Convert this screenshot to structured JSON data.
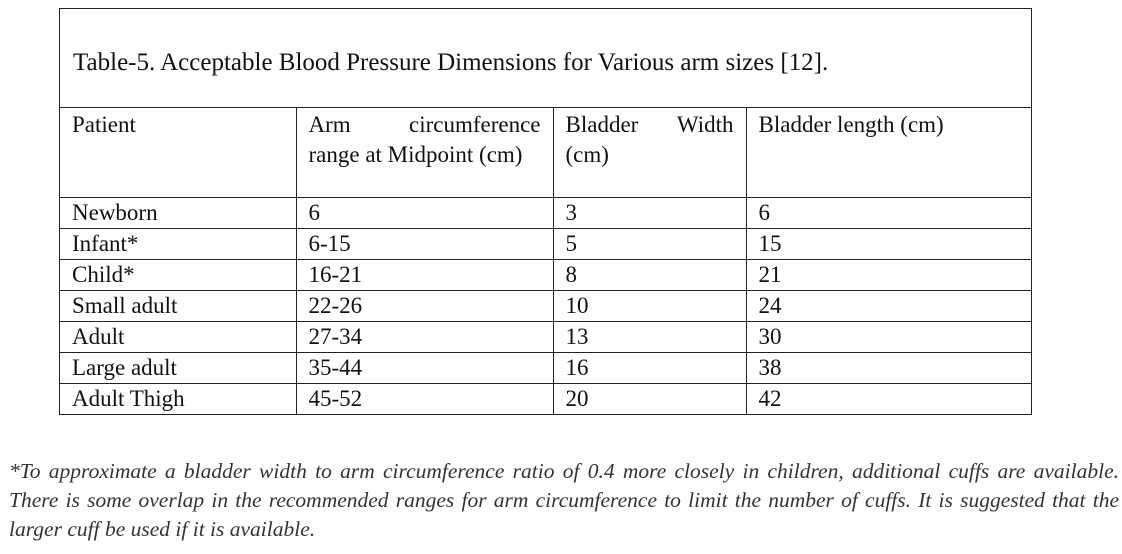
{
  "caption": "Table-5. Acceptable Blood Pressure Dimensions for Various arm sizes [12].",
  "table": {
    "headers": [
      "Patient",
      "Arm circumference range at Midpoint (cm)",
      "Bladder Width (cm)",
      "Bladder length (cm)"
    ],
    "rows": [
      [
        "Newborn",
        "6",
        "3",
        "6"
      ],
      [
        "Infant*",
        "6-15",
        "5",
        "15"
      ],
      [
        "Child*",
        "16-21",
        "8",
        "21"
      ],
      [
        "Small adult",
        "22-26",
        "10",
        "24"
      ],
      [
        "Adult",
        "27-34",
        "13",
        "30"
      ],
      [
        "Large adult",
        "35-44",
        "16",
        "38"
      ],
      [
        "Adult Thigh",
        "45-52",
        "20",
        "42"
      ]
    ]
  },
  "footnote": "*To approximate a bladder width to arm circumference ratio of 0.4 more closely in children, additional cuffs are available. There is some overlap in the recommended ranges for arm circumference to limit the number of cuffs. It is suggested that the larger cuff be used if it is available."
}
